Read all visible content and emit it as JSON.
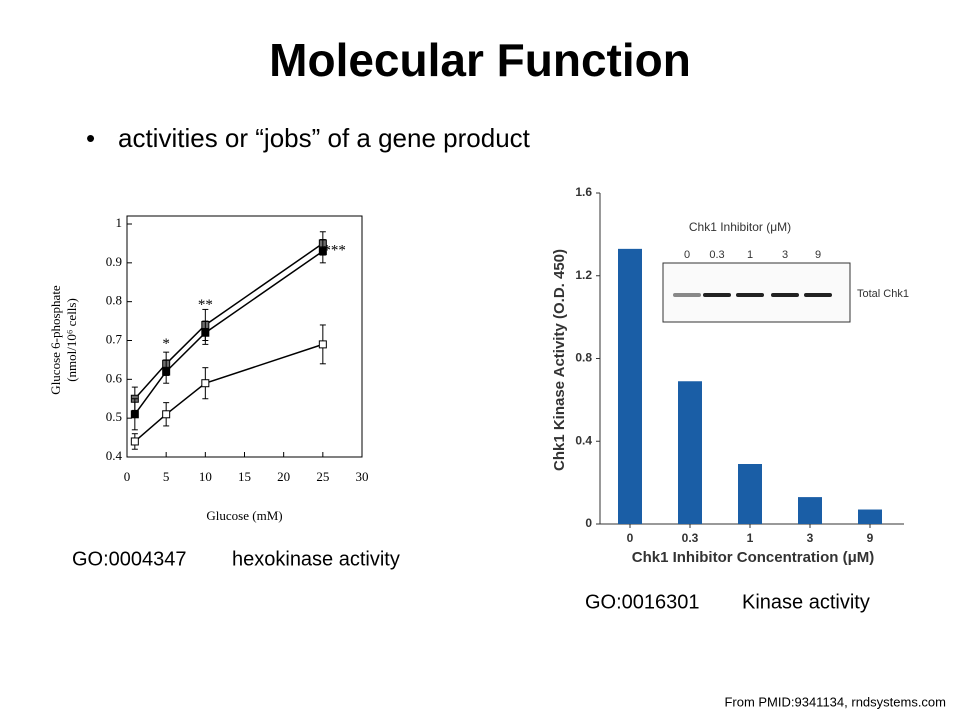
{
  "title": "Molecular Function",
  "bullet": "activities or “jobs” of a gene product",
  "captions": [
    {
      "id": "GO:0004347",
      "text": "hexokinase activity"
    },
    {
      "id": "GO:0016301",
      "text": "Kinase activity"
    }
  ],
  "source": "From PMID:9341134, rndsystems.com",
  "chart_data": [
    {
      "type": "line",
      "x_label": "Glucose (mM)",
      "y_label": [
        "Glucose 6-phosphate",
        "(nmol/10⁶ cells)"
      ],
      "x": [
        1,
        5,
        10,
        25
      ],
      "series": [
        {
          "color": "#6e6e6e",
          "values": [
            0.55,
            0.64,
            0.74,
            0.95
          ],
          "errors": [
            0.03,
            0.03,
            0.04,
            0.03
          ]
        },
        {
          "color": "#000000",
          "values": [
            0.51,
            0.62,
            0.72,
            0.93
          ],
          "errors": [
            0.04,
            0.03,
            0.03,
            0.03
          ]
        },
        {
          "color": "#ffffff",
          "values": [
            0.44,
            0.51,
            0.59,
            0.69
          ],
          "errors": [
            0.02,
            0.03,
            0.04,
            0.05
          ]
        }
      ],
      "annotations": [
        {
          "text": "*",
          "x": 5,
          "y": 0.69
        },
        {
          "text": "**",
          "x": 10,
          "y": 0.79
        },
        {
          "text": "***",
          "x": 26.5,
          "y": 0.93
        }
      ],
      "xlim": [
        0,
        30
      ],
      "xticks": [
        0,
        5,
        10,
        15,
        20,
        25,
        30
      ],
      "ylim": [
        0.4,
        1
      ],
      "yticks": [
        0.4,
        0.5,
        0.6,
        0.7,
        0.8,
        0.9,
        1
      ]
    },
    {
      "type": "bar",
      "x_label": "Chk1 Inhibitor Concentration (μM)",
      "y_label": "Chk1 Kinase Activity (O.D. 450)",
      "categories": [
        "0",
        "0.3",
        "1",
        "3",
        "9"
      ],
      "values": [
        1.33,
        0.69,
        0.29,
        0.13,
        0.07
      ],
      "color": "#1a5ea6",
      "ylim": [
        0,
        1.6
      ],
      "yticks": [
        0,
        0.4,
        0.8,
        1.2,
        1.6
      ],
      "inset": {
        "title": "Chk1 Inhibitor (μM)",
        "lanes": [
          "0",
          "0.3",
          "1",
          "3",
          "9"
        ],
        "band_label": "Total Chk1"
      }
    }
  ]
}
